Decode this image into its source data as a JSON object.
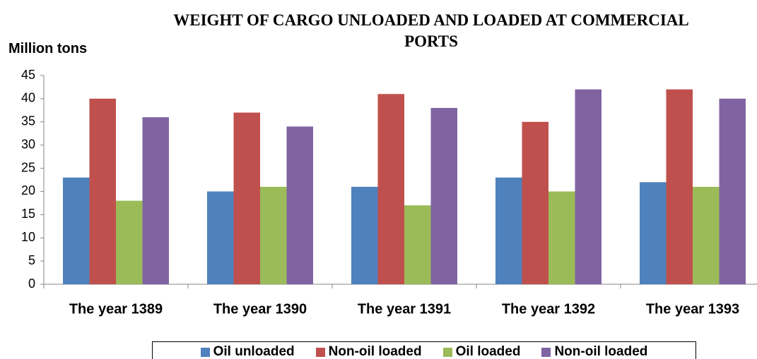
{
  "chart_data": {
    "type": "bar",
    "title": "WEIGHT OF CARGO UNLOADED AND LOADED AT COMMERCIAL PORTS",
    "y_label": "Million tons",
    "categories": [
      "The year 1389",
      "The year 1390",
      "The year 1391",
      "The year 1392",
      "The year 1393"
    ],
    "series": [
      {
        "name": "Oil unloaded",
        "color": "#4f81bd",
        "values": [
          23,
          20,
          21,
          23,
          22
        ]
      },
      {
        "name": "Non-oil loaded",
        "color": "#c0504d",
        "values": [
          40,
          37,
          41,
          35,
          42
        ]
      },
      {
        "name": "Oil loaded",
        "color": "#9bbb59",
        "values": [
          18,
          21,
          17,
          20,
          21
        ]
      },
      {
        "name": "Non-oil loaded",
        "color": "#8064a2",
        "values": [
          36,
          34,
          38,
          42,
          40
        ]
      }
    ],
    "ylim": [
      0,
      45
    ],
    "yticks": [
      0,
      5,
      10,
      15,
      20,
      25,
      30,
      35,
      40,
      45
    ],
    "grid": false,
    "legend": "bottom"
  }
}
